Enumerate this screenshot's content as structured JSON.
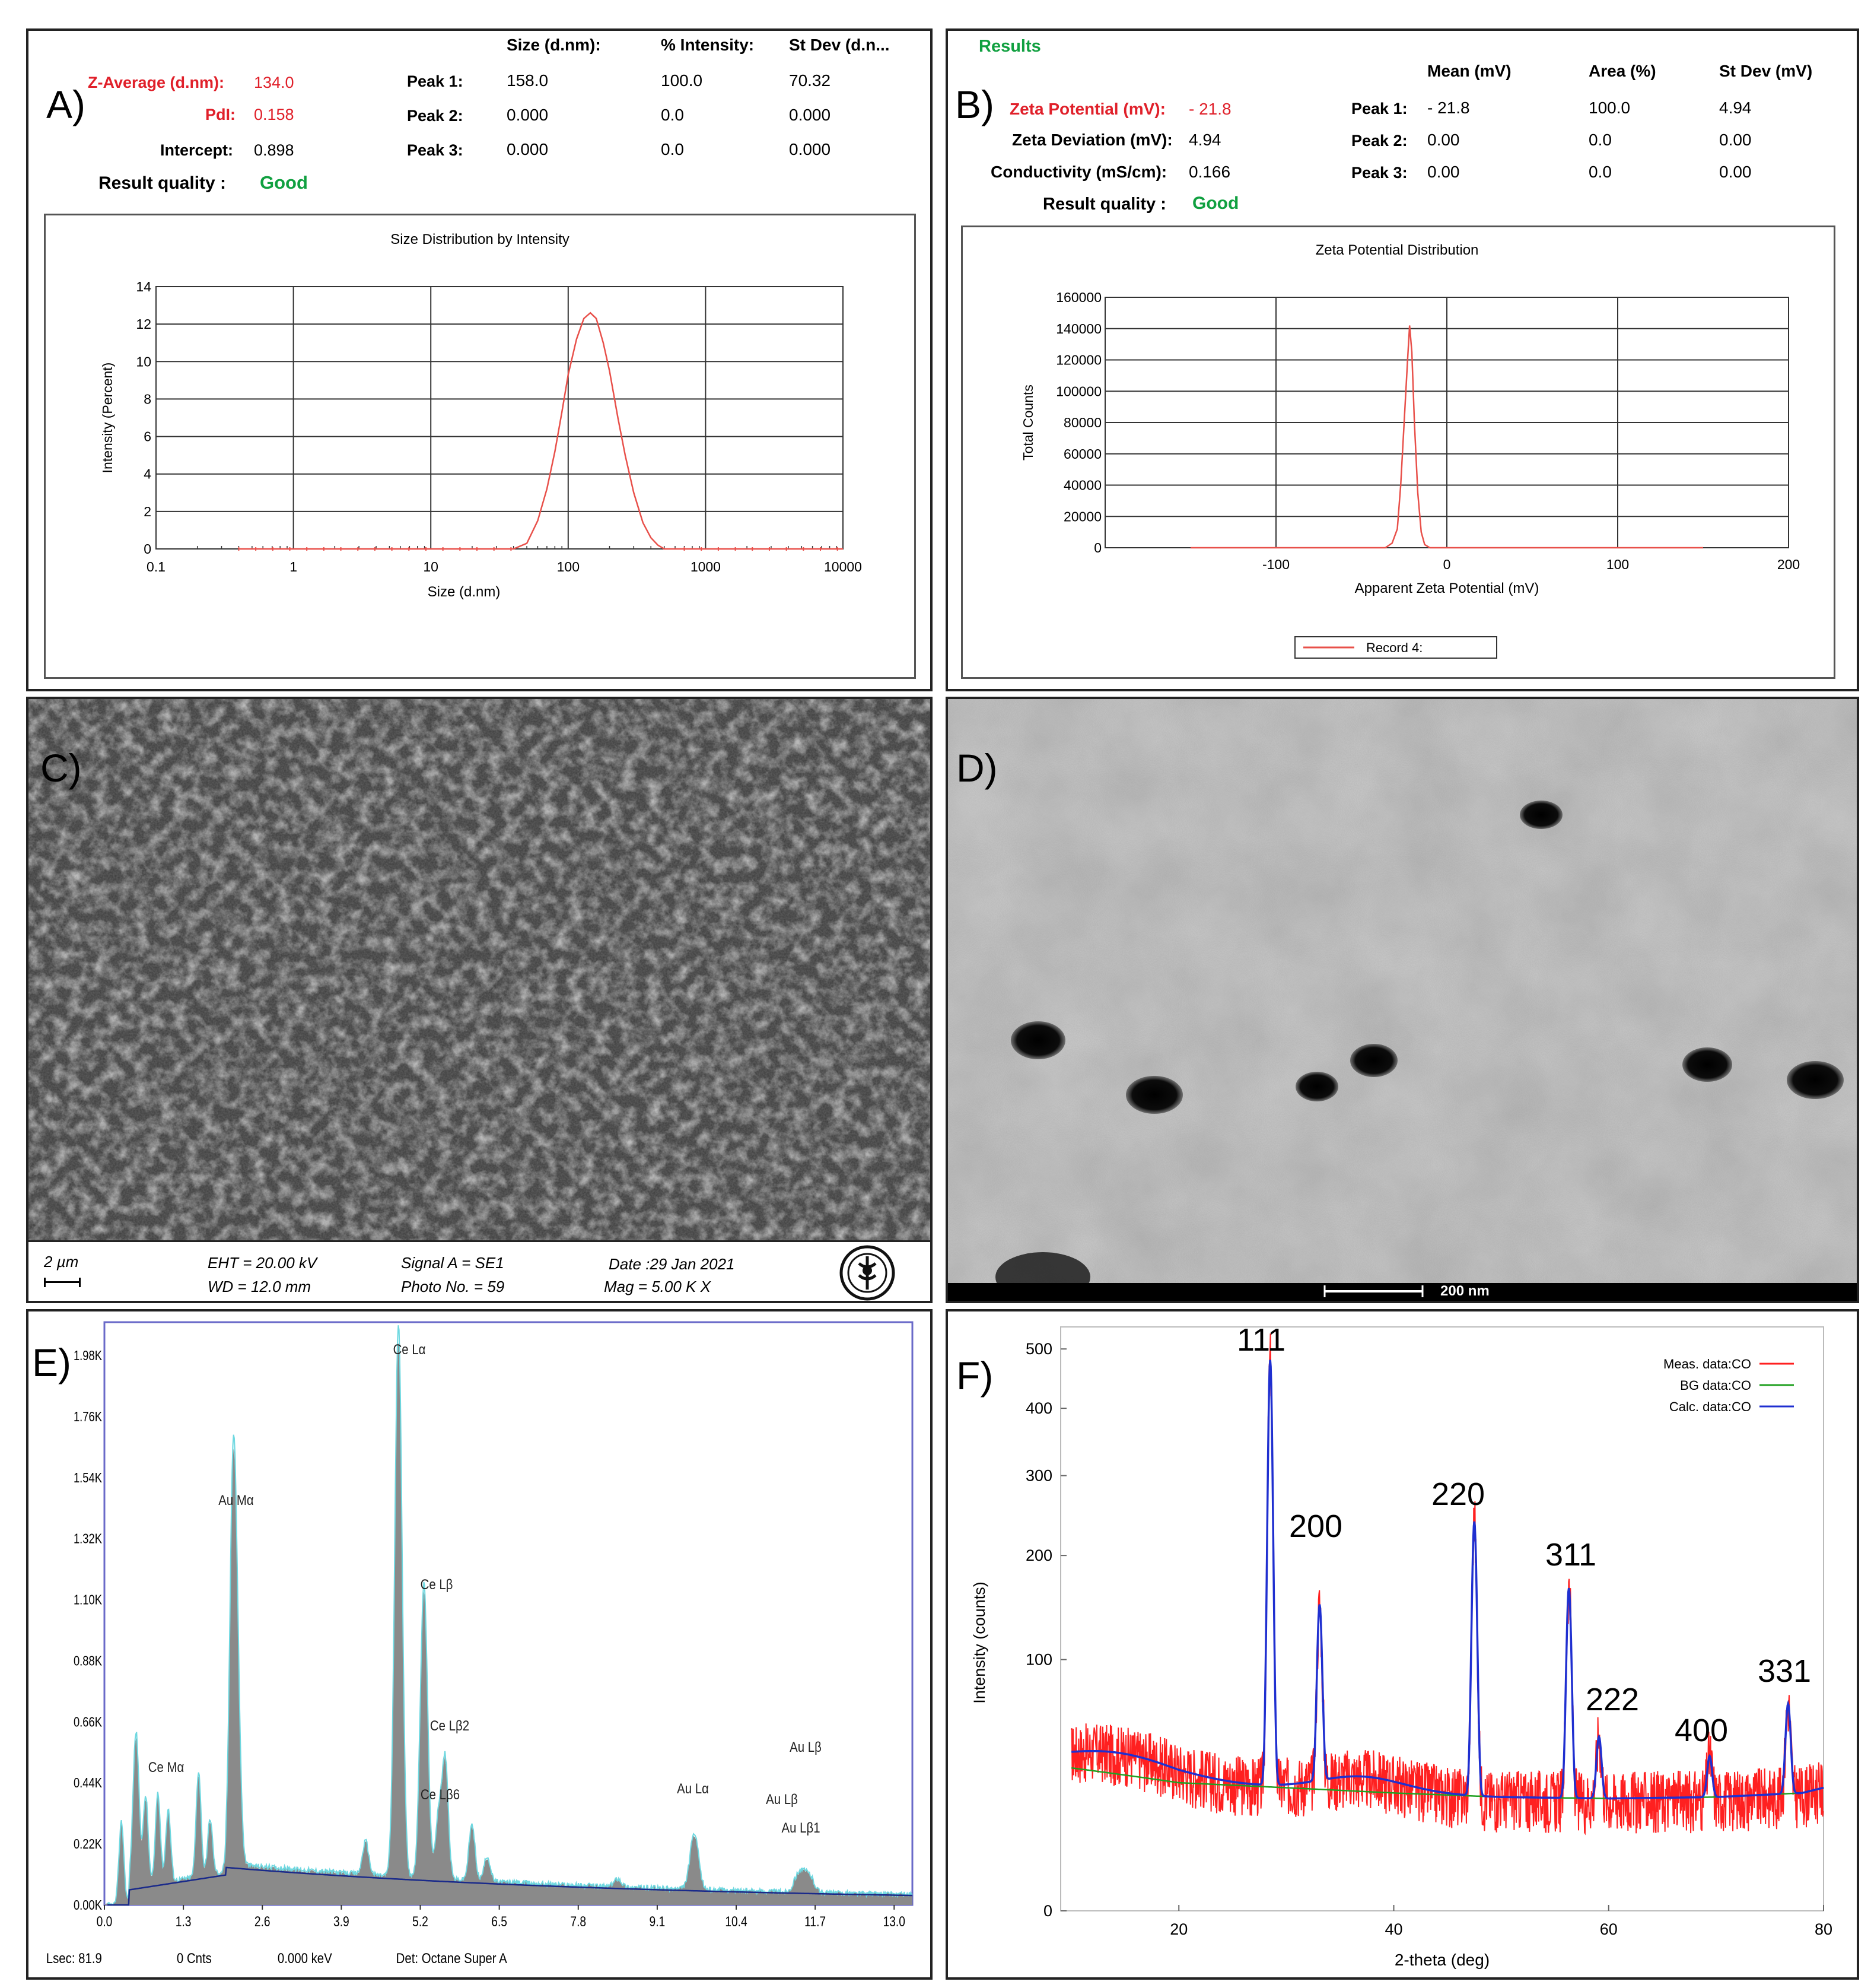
{
  "panelA": {
    "label": "A)",
    "headers": {
      "size": "Size (d.nm):",
      "intensity": "% Intensity:",
      "stdev": "St Dev (d.n..."
    },
    "zavg_label": "Z-Average (d.nm):",
    "zavg_value": "134.0",
    "pdi_label": "PdI:",
    "pdi_value": "0.158",
    "intercept_label": "Intercept:",
    "intercept_value": "0.898",
    "quality_label": "Result quality :",
    "quality_value": "Good",
    "peaks": [
      {
        "label": "Peak 1:",
        "size": "158.0",
        "intensity": "100.0",
        "stdev": "70.32"
      },
      {
        "label": "Peak 2:",
        "size": "0.000",
        "intensity": "0.0",
        "stdev": "0.000"
      },
      {
        "label": "Peak 3:",
        "size": "0.000",
        "intensity": "0.0",
        "stdev": "0.000"
      }
    ]
  },
  "panelB": {
    "label": "B)",
    "results_label": "Results",
    "headers": {
      "mean": "Mean (mV)",
      "area": "Area (%)",
      "stdev": "St Dev (mV)"
    },
    "zeta_label": "Zeta Potential (mV):",
    "zeta_value": "- 21.8",
    "dev_label": "Zeta Deviation (mV):",
    "dev_value": "4.94",
    "cond_label": "Conductivity (mS/cm):",
    "cond_value": "0.166",
    "quality_label": "Result quality :",
    "quality_value": "Good",
    "peaks": [
      {
        "label": "Peak 1:",
        "mean": "- 21.8",
        "area": "100.0",
        "stdev": "4.94"
      },
      {
        "label": "Peak 2:",
        "mean": "0.00",
        "area": "0.0",
        "stdev": "0.00"
      },
      {
        "label": "Peak 3:",
        "mean": "0.00",
        "area": "0.0",
        "stdev": "0.00"
      }
    ]
  },
  "panelC": {
    "label": "C)",
    "scale": "2 µm",
    "eht": "EHT = 20.00 kV",
    "wd": "WD = 12.0 mm",
    "signal": "Signal A = SE1",
    "photo": "Photo No. = 59",
    "date": "Date :29 Jan 2021",
    "mag": "Mag =     5.00 K X"
  },
  "panelD": {
    "label": "D)",
    "scale": "200 nm"
  },
  "panelE": {
    "label": "E)",
    "footer": {
      "lsec": "Lsec: 81.9",
      "cnts": "0 Cnts",
      "kev": "0.000 keV",
      "det": "Det: Octane Super A"
    }
  },
  "panelF": {
    "label": "F)"
  },
  "chart_data": [
    {
      "type": "line",
      "title": "Size Distribution by Intensity",
      "xlabel": "Size (d.nm)",
      "ylabel": "Intensity (Percent)",
      "xscale": "log",
      "xlim": [
        0.1,
        10000
      ],
      "ylim": [
        0,
        14
      ],
      "xticks": [
        "0.1",
        "1",
        "10",
        "100",
        "1000",
        "10000"
      ],
      "yticks": [
        "0",
        "2",
        "4",
        "6",
        "8",
        "10",
        "12",
        "14"
      ],
      "grid": true,
      "color": "#e8504a",
      "series": [
        {
          "x": [
            0.4,
            40,
            50,
            60,
            70,
            80,
            90,
            100,
            115,
            130,
            145,
            160,
            180,
            200,
            230,
            260,
            300,
            350,
            400,
            450,
            500,
            600,
            10000
          ],
          "y": [
            0,
            0,
            0.3,
            1.5,
            3.2,
            5.2,
            7.3,
            9.3,
            11.2,
            12.3,
            12.6,
            12.3,
            11.0,
            9.5,
            7.0,
            5.0,
            3.0,
            1.4,
            0.6,
            0.2,
            0,
            0,
            0
          ]
        }
      ]
    },
    {
      "type": "line",
      "title": "Zeta Potential Distribution",
      "xlabel": "Apparent Zeta Potential (mV)",
      "ylabel": "Total Counts",
      "xlim": [
        -200,
        200
      ],
      "ylim": [
        0,
        160000
      ],
      "xticks": [
        "-100",
        "0",
        "100",
        "200"
      ],
      "yticks": [
        "0",
        "20000",
        "40000",
        "60000",
        "80000",
        "100000",
        "120000",
        "140000",
        "160000"
      ],
      "grid": true,
      "legend": "bottom",
      "color": "#e8504a",
      "series": [
        {
          "name": "Record 4:",
          "x": [
            -150,
            -36,
            -32,
            -29,
            -27,
            -25,
            -23,
            -21.8,
            -20.5,
            -19,
            -17,
            -15,
            -13,
            -10,
            150
          ],
          "y": [
            0,
            0,
            3000,
            12000,
            40000,
            80000,
            120000,
            142000,
            125000,
            80000,
            35000,
            10000,
            2000,
            0,
            0
          ]
        }
      ]
    },
    {
      "type": "area",
      "xlim": [
        0,
        13.3
      ],
      "ylim": [
        0,
        2100
      ],
      "xticks": [
        "0.0",
        "1.3",
        "2.6",
        "3.9",
        "5.2",
        "6.5",
        "7.8",
        "9.1",
        "10.4",
        "11.7",
        "13.0"
      ],
      "yticks": [
        "0.00K",
        "0.22K",
        "0.44K",
        "0.66K",
        "0.88K",
        "1.10K",
        "1.32K",
        "1.54K",
        "1.76K",
        "1.98K"
      ],
      "colors": {
        "spectrum": "#6ed8e0",
        "fill": "#8a8a8a",
        "background": "#1a2a8a"
      },
      "peaks": [
        {
          "label": "Ce Mα",
          "x": 0.88,
          "y": 330
        },
        {
          "label": "Au Mα",
          "x": 2.12,
          "y": 1430
        },
        {
          "label": "Ce Lα",
          "x": 4.84,
          "y": 1990
        },
        {
          "label": "Ce Lβ",
          "x": 5.26,
          "y": 1060
        },
        {
          "label": "Ce Lβ2",
          "x": 5.61,
          "y": 430
        },
        {
          "label": "Ce Lβ6",
          "x": 5.5,
          "y": 230
        },
        {
          "label": "Au Lα",
          "x": 9.71,
          "y": 200
        },
        {
          "label": "Au Lβ",
          "x": 11.44,
          "y": 80
        },
        {
          "label": "Au Lβ1",
          "x": 11.6,
          "y": 60
        },
        {
          "label": "Au Lβ",
          "x": 11.8,
          "y": 300
        }
      ]
    },
    {
      "type": "line",
      "xlabel": "2-theta (deg)",
      "ylabel": "Intensity (counts)",
      "xlim": [
        9,
        80
      ],
      "ylim": [
        0,
        540
      ],
      "yscale": "sqrt",
      "xticks": [
        "20",
        "40",
        "60",
        "80"
      ],
      "yticks": [
        "0",
        "100",
        "200",
        "300",
        "400",
        "500"
      ],
      "legend": "top-right",
      "series": [
        {
          "name": "Meas. data:CO",
          "color": "#ff2020"
        },
        {
          "name": "BG data:CO",
          "color": "#20a020"
        },
        {
          "name": "Calc. data:CO",
          "color": "#1f2fd0"
        }
      ],
      "background": {
        "x": [
          9,
          20,
          30,
          40,
          50,
          60,
          70,
          78,
          80
        ],
        "y": [
          33,
          26,
          24,
          22,
          20.5,
          20,
          20.5,
          22,
          24
        ]
      },
      "peaks": [
        {
          "label": "111",
          "x": 28.5,
          "y": 480
        },
        {
          "label": "200",
          "x": 33.1,
          "y": 145
        },
        {
          "label": "220",
          "x": 47.5,
          "y": 240
        },
        {
          "label": "311",
          "x": 56.3,
          "y": 165
        },
        {
          "label": "222",
          "x": 59.1,
          "y": 48
        },
        {
          "label": "400",
          "x": 69.4,
          "y": 38
        },
        {
          "label": "331",
          "x": 76.7,
          "y": 68
        }
      ]
    }
  ]
}
